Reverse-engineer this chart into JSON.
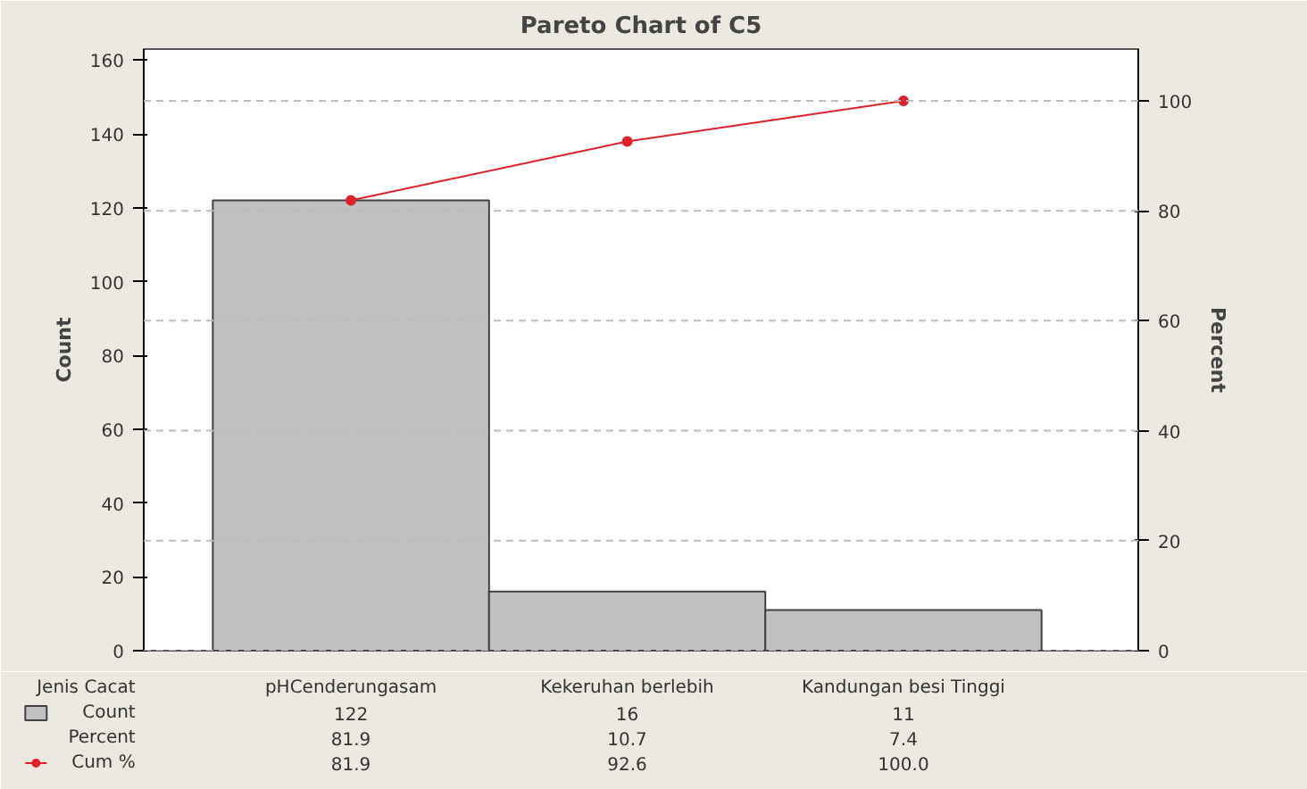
{
  "chart_data": {
    "type": "bar",
    "title": "Pareto Chart of C5",
    "xlabel": "Jenis Cacat",
    "ylabel": "Count",
    "y2label": "Percent",
    "categories": [
      "pHCenderungasam",
      "Kekeruhan berlebih",
      "Kandungan besi Tinggi"
    ],
    "series": [
      {
        "name": "Count",
        "type": "bar",
        "color": "#c0c0c0",
        "values": [
          122,
          16,
          11
        ],
        "value_labels": [
          "122",
          "16",
          "11"
        ]
      },
      {
        "name": "Cum %",
        "type": "line",
        "axis": "y2",
        "color": "#e0202a",
        "marker": "circle",
        "line_style": "solid",
        "values": [
          81.9,
          92.6,
          100.0
        ],
        "value_labels": [
          "81.9",
          "92.6",
          "100.0"
        ]
      }
    ],
    "annotations": [
      "Percent",
      "81.9",
      "10.7",
      "7.4"
    ],
    "ylim": [
      0,
      163
    ],
    "yticks": [
      0,
      20,
      40,
      60,
      80,
      100,
      120,
      140,
      160
    ],
    "y2lim": [
      0,
      109.4
    ],
    "y2ticks": [
      0,
      20,
      40,
      60,
      80,
      100
    ],
    "grid": "y",
    "legend": "bottom left"
  }
}
